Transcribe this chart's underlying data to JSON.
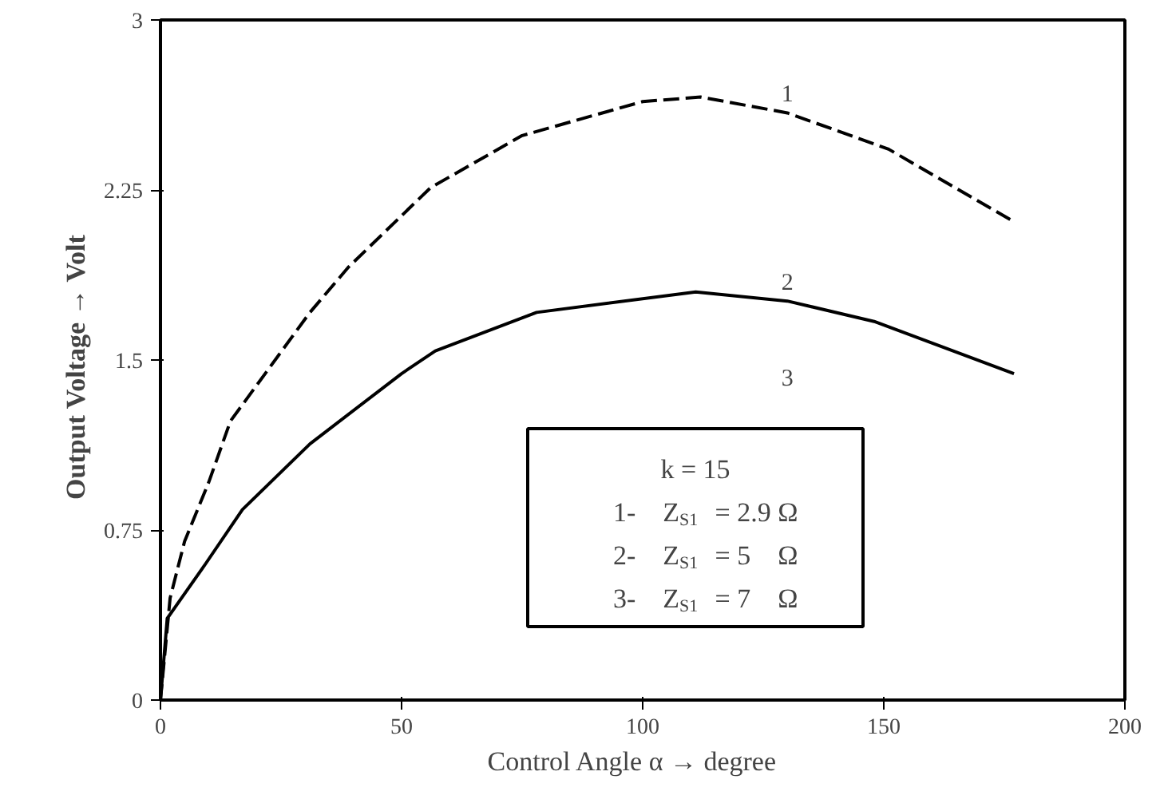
{
  "chart_data": {
    "type": "line",
    "xlabel": "Control Angle  α  →  degree",
    "ylabel": "Output Voltage  →  Volt",
    "xlim": [
      0,
      200
    ],
    "xticks": [
      0,
      50,
      100,
      150,
      200
    ],
    "ylim": [
      0,
      3
    ],
    "yticks": [
      0,
      0.75,
      1.5,
      2.25,
      3
    ],
    "grid": false,
    "series": [
      {
        "name": "1",
        "color": "#000000",
        "line_style": "dashed",
        "x": [
          0,
          2,
          5,
          10,
          14.5,
          31,
          39,
          56,
          75,
          100,
          112,
          130,
          151,
          177
        ],
        "values": [
          0,
          0.45,
          0.7,
          0.96,
          1.23,
          1.71,
          1.91,
          2.26,
          2.49,
          2.64,
          2.66,
          2.59,
          2.43,
          2.11
        ]
      },
      {
        "name": "2",
        "color": "#000000",
        "line_style": "solid",
        "x": [
          0,
          1.4,
          9,
          17,
          31,
          50,
          57,
          78,
          111,
          130,
          148,
          177
        ],
        "values": [
          0,
          0.36,
          0.59,
          0.84,
          1.13,
          1.44,
          1.54,
          1.71,
          1.8,
          1.76,
          1.67,
          1.44
        ]
      }
    ],
    "annotations": [
      "3",
      "k = 15",
      "1-    Z$_{S1}$ = 2.9 Ω",
      "2-    Z$_{S1}$ = 5    Ω",
      "3-    Z$_{S1}$ = 7    Ω"
    ]
  }
}
